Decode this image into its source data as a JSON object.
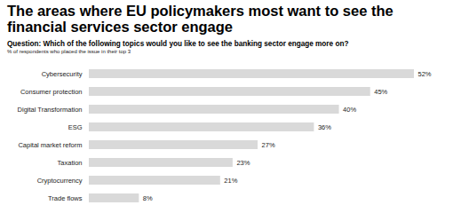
{
  "chart_data": {
    "type": "bar",
    "title": "The areas where EU policymakers most want to see the financial services sector engage",
    "subtitle": "Question: Which of the following topics would you like to see the banking sector engage more on?",
    "note": "% of respondents who placed the issue in their top 3",
    "orientation": "horizontal",
    "categories": [
      "Cybersecurity",
      "Consumer protection",
      "Digital Transformation",
      "ESG",
      "Capital market reform",
      "Taxation",
      "Cryptocurrency",
      "Trade flows"
    ],
    "values": [
      52,
      45,
      40,
      36,
      27,
      23,
      21,
      8
    ],
    "value_labels": [
      "52%",
      "45%",
      "40%",
      "36%",
      "27%",
      "23%",
      "21%",
      "8%"
    ],
    "data_labels": true,
    "tick_labels": "y",
    "color": "#d9d9d9",
    "xlim": [
      0,
      52
    ],
    "grid": false
  }
}
